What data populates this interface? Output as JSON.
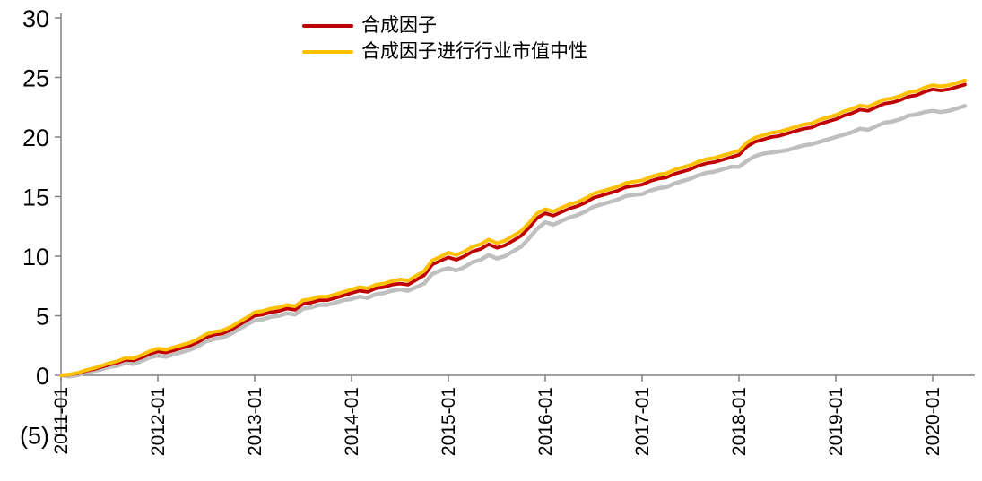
{
  "colors": {
    "red": "#C00000",
    "gold": "#FFC000",
    "gray": "#BFBFBF",
    "axis": "#808080",
    "text": "#000000"
  },
  "legend": {
    "items": [
      {
        "label": "合成因子",
        "color": "#C00000"
      },
      {
        "label": "合成因子进行行业市值中性",
        "color": "#FFC000"
      }
    ]
  },
  "axes": {
    "y": {
      "tick_labels": [
        "30",
        "25",
        "20",
        "15",
        "10",
        "5",
        "0",
        "(5)"
      ],
      "tick_values": [
        30,
        25,
        20,
        15,
        10,
        5,
        0,
        -5
      ],
      "min": -5,
      "max": 30
    },
    "x": {
      "tick_labels": [
        "2011-01",
        "2012-01",
        "2013-01",
        "2014-01",
        "2015-01",
        "2016-01",
        "2017-01",
        "2018-01",
        "2019-01",
        "2020-01"
      ]
    }
  },
  "chart_data": {
    "type": "line",
    "title": "",
    "xlabel": "",
    "ylabel": "",
    "x_start": "2011-01",
    "x_end": "2020-05",
    "x_frequency": "monthly",
    "x_tick_labels": [
      "2011-01",
      "2012-01",
      "2013-01",
      "2014-01",
      "2015-01",
      "2016-01",
      "2017-01",
      "2018-01",
      "2019-01",
      "2020-01"
    ],
    "ylim": [
      -5,
      30
    ],
    "grid": false,
    "legend_position": "top-center",
    "series": [
      {
        "name": "合成因子",
        "color": "#C00000",
        "in_legend": true,
        "values": [
          0,
          0.05,
          0.15,
          0.35,
          0.5,
          0.7,
          0.9,
          1.05,
          1.3,
          1.25,
          1.5,
          1.8,
          2,
          1.9,
          2.1,
          2.3,
          2.5,
          2.8,
          3.2,
          3.4,
          3.5,
          3.8,
          4.2,
          4.6,
          5,
          5.1,
          5.3,
          5.4,
          5.6,
          5.5,
          6,
          6.1,
          6.3,
          6.3,
          6.5,
          6.7,
          6.9,
          7.1,
          7,
          7.3,
          7.4,
          7.6,
          7.7,
          7.6,
          8,
          8.4,
          9.3,
          9.6,
          9.9,
          9.7,
          10,
          10.4,
          10.6,
          11,
          10.7,
          10.9,
          11.3,
          11.7,
          12.4,
          13.2,
          13.6,
          13.4,
          13.7,
          14,
          14.2,
          14.5,
          14.9,
          15.1,
          15.3,
          15.5,
          15.8,
          15.9,
          16,
          16.3,
          16.5,
          16.6,
          16.9,
          17.1,
          17.3,
          17.6,
          17.8,
          17.9,
          18.1,
          18.3,
          18.5,
          19.2,
          19.6,
          19.8,
          20,
          20.1,
          20.3,
          20.5,
          20.7,
          20.8,
          21.1,
          21.3,
          21.5,
          21.8,
          22,
          22.3,
          22.2,
          22.5,
          22.8,
          22.9,
          23.1,
          23.4,
          23.5,
          23.8,
          24,
          23.9,
          24,
          24.2,
          24.4
        ]
      },
      {
        "name": "合成因子进行行业市值中性",
        "color": "#FFC000",
        "in_legend": true,
        "values": [
          0,
          0.07,
          0.19,
          0.41,
          0.58,
          0.8,
          1.02,
          1.19,
          1.46,
          1.43,
          1.7,
          2.02,
          2.25,
          2.15,
          2.35,
          2.55,
          2.75,
          3.05,
          3.45,
          3.65,
          3.75,
          4.05,
          4.45,
          4.85,
          5.3,
          5.4,
          5.6,
          5.7,
          5.9,
          5.8,
          6.3,
          6.4,
          6.6,
          6.6,
          6.8,
          7,
          7.2,
          7.4,
          7.3,
          7.6,
          7.7,
          7.9,
          8.05,
          7.95,
          8.35,
          8.75,
          9.65,
          9.95,
          10.3,
          10.1,
          10.4,
          10.8,
          11,
          11.4,
          11.1,
          11.3,
          11.7,
          12.1,
          12.8,
          13.6,
          13.95,
          13.75,
          14.05,
          14.35,
          14.55,
          14.85,
          15.25,
          15.45,
          15.65,
          15.85,
          16.15,
          16.25,
          16.35,
          16.65,
          16.85,
          16.95,
          17.25,
          17.45,
          17.65,
          17.95,
          18.15,
          18.25,
          18.45,
          18.65,
          18.85,
          19.55,
          19.95,
          20.15,
          20.35,
          20.45,
          20.65,
          20.85,
          21.05,
          21.15,
          21.45,
          21.65,
          21.85,
          22.15,
          22.35,
          22.65,
          22.55,
          22.85,
          23.15,
          23.25,
          23.45,
          23.75,
          23.85,
          24.15,
          24.35,
          24.25,
          24.35,
          24.55,
          24.75
        ]
      },
      {
        "name": "",
        "color": "#BFBFBF",
        "in_legend": false,
        "values": [
          0,
          -0.1,
          0,
          0.2,
          0.35,
          0.5,
          0.7,
          0.8,
          1.05,
          0.95,
          1.2,
          1.5,
          1.65,
          1.55,
          1.75,
          1.95,
          2.15,
          2.45,
          2.85,
          3.05,
          3.15,
          3.45,
          3.85,
          4.25,
          4.6,
          4.7,
          4.9,
          5,
          5.2,
          5.1,
          5.6,
          5.7,
          5.9,
          5.9,
          6.1,
          6.3,
          6.4,
          6.6,
          6.5,
          6.8,
          6.9,
          7.1,
          7.2,
          7.1,
          7.4,
          7.7,
          8.5,
          8.8,
          9,
          8.8,
          9.1,
          9.5,
          9.7,
          10.1,
          9.8,
          10,
          10.4,
          10.8,
          11.5,
          12.3,
          12.85,
          12.65,
          12.95,
          13.25,
          13.45,
          13.75,
          14.15,
          14.35,
          14.55,
          14.75,
          15.05,
          15.15,
          15.2,
          15.5,
          15.7,
          15.8,
          16.1,
          16.3,
          16.5,
          16.8,
          17,
          17.1,
          17.3,
          17.5,
          17.5,
          18,
          18.4,
          18.6,
          18.7,
          18.8,
          18.9,
          19.1,
          19.3,
          19.4,
          19.6,
          19.8,
          20,
          20.2,
          20.4,
          20.7,
          20.6,
          20.9,
          21.2,
          21.3,
          21.5,
          21.8,
          21.9,
          22.1,
          22.2,
          22.1,
          22.2,
          22.4,
          22.6
        ]
      }
    ]
  }
}
